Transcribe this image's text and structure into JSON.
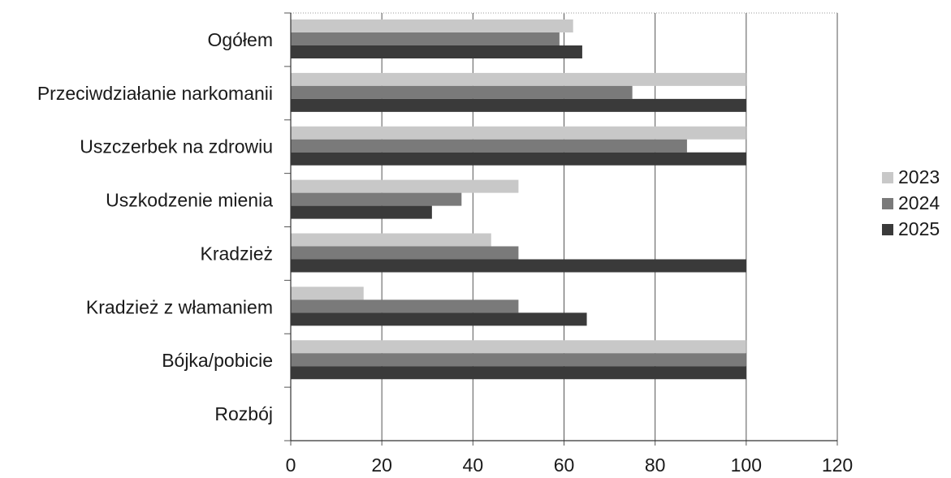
{
  "chart_data": {
    "type": "bar",
    "orientation": "horizontal",
    "categories": [
      "Ogółem",
      "Przeciwdziałanie narkomanii",
      "Uszczerbek na zdrowiu",
      "Uszkodzenie mienia",
      "Kradzież",
      "Kradzież z włamaniem",
      "Bójka/pobicie",
      "Rozbój"
    ],
    "series": [
      {
        "name": "2023",
        "color": "#c8c8c8",
        "values": [
          62,
          100,
          100,
          50,
          44,
          16,
          100,
          0
        ]
      },
      {
        "name": "2024",
        "color": "#7a7a7a",
        "values": [
          59,
          75,
          87,
          37.5,
          50,
          50,
          100,
          0
        ]
      },
      {
        "name": "2025",
        "color": "#3a3a3a",
        "values": [
          64,
          100,
          100,
          31,
          100,
          65,
          100,
          0
        ]
      }
    ],
    "x_ticks": [
      "0",
      "20",
      "40",
      "60",
      "80",
      "100",
      "120"
    ],
    "xlim": [
      0,
      120
    ],
    "grid": "vertical",
    "legend_position": "right"
  }
}
